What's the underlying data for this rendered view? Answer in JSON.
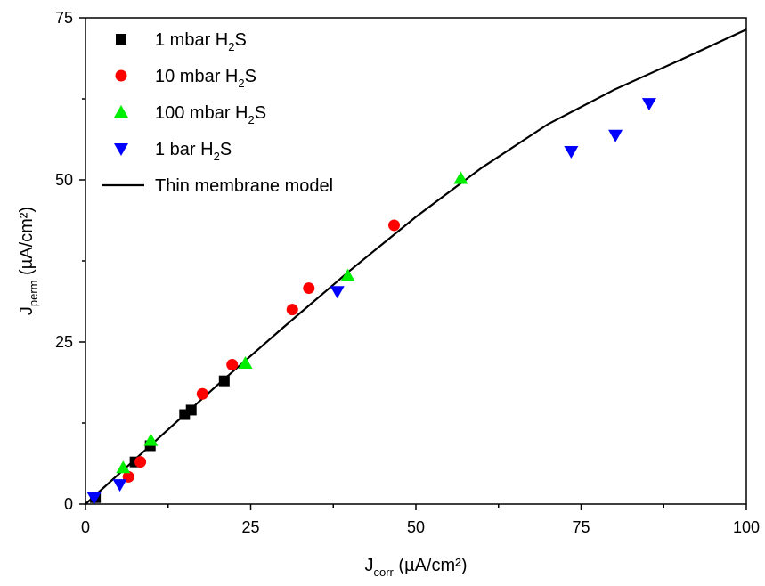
{
  "chart_data": {
    "type": "scatter",
    "xlabel": {
      "main": "J",
      "sub": "corr",
      "unit": " (µA/cm²)"
    },
    "ylabel": {
      "main": "J",
      "sub": "perm",
      "unit": " (µA/cm²)"
    },
    "xlim": [
      0,
      100
    ],
    "ylim": [
      0,
      75
    ],
    "xticks": [
      0,
      25,
      50,
      75,
      100
    ],
    "yticks": [
      0,
      25,
      50,
      75
    ],
    "grid": false,
    "legend_position": "top-left",
    "series": [
      {
        "name": "1 mbar H₂S",
        "legend": {
          "pre": "1 mbar H",
          "sub": "2",
          "post": "S"
        },
        "marker": "square",
        "color": "#000000",
        "points": [
          [
            1.5,
            1.0
          ],
          [
            7.5,
            6.5
          ],
          [
            9.8,
            9.0
          ],
          [
            15.0,
            13.8
          ],
          [
            16.0,
            14.5
          ],
          [
            21.0,
            19.0
          ]
        ]
      },
      {
        "name": "10 mbar H₂S",
        "legend": {
          "pre": "10 mbar H",
          "sub": "2",
          "post": "S"
        },
        "marker": "circle",
        "color": "#ff0000",
        "points": [
          [
            6.5,
            4.2
          ],
          [
            8.3,
            6.5
          ],
          [
            17.7,
            17.0
          ],
          [
            22.2,
            21.5
          ],
          [
            31.3,
            30.0
          ],
          [
            33.8,
            33.3
          ],
          [
            46.7,
            43.0
          ]
        ]
      },
      {
        "name": "100 mbar H₂S",
        "legend": {
          "pre": "100 mbar H",
          "sub": "2",
          "post": "S"
        },
        "marker": "triangle-up",
        "color": "#00ee00",
        "points": [
          [
            5.7,
            5.6
          ],
          [
            9.9,
            9.8
          ],
          [
            24.2,
            21.7
          ],
          [
            39.7,
            35.2
          ],
          [
            56.8,
            50.2
          ]
        ]
      },
      {
        "name": "1 bar H₂S",
        "legend": {
          "pre": "1 bar H",
          "sub": "2",
          "post": "S"
        },
        "marker": "triangle-down",
        "color": "#0000ff",
        "points": [
          [
            1.3,
            1.0
          ],
          [
            5.2,
            3.0
          ],
          [
            38.1,
            32.8
          ],
          [
            73.5,
            54.4
          ],
          [
            80.2,
            56.9
          ],
          [
            85.3,
            61.8
          ]
        ]
      }
    ],
    "model": {
      "name": "Thin membrane model",
      "type": "line",
      "color": "#000000",
      "x": [
        0,
        5,
        10,
        20,
        30,
        40,
        50,
        60,
        70,
        80,
        90,
        100
      ],
      "y": [
        0,
        4.6,
        9.2,
        18.4,
        27.3,
        36.0,
        44.3,
        51.9,
        58.6,
        63.9,
        68.5,
        73.2
      ]
    }
  }
}
